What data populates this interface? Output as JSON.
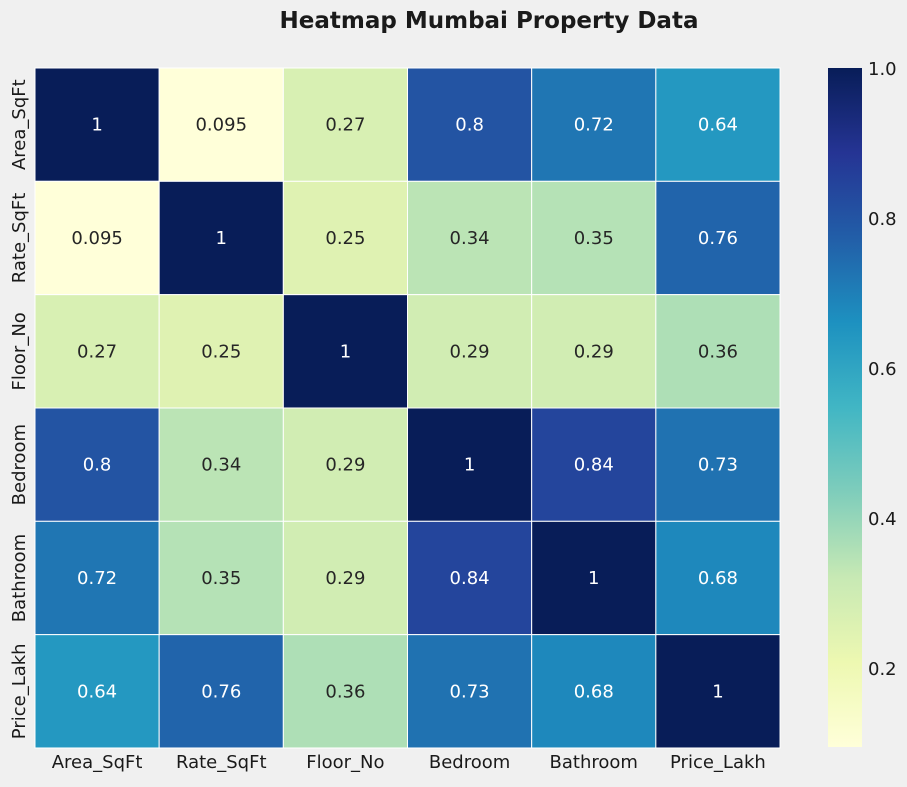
{
  "chart_data": {
    "type": "heatmap",
    "title": "Heatmap Mumbai Property Data",
    "xlabel": "",
    "ylabel": "",
    "columns": [
      "Area_SqFt",
      "Rate_SqFt",
      "Floor_No",
      "Bedroom",
      "Bathroom",
      "Price_Lakh"
    ],
    "rows": [
      "Area_SqFt",
      "Rate_SqFt",
      "Floor_No",
      "Bedroom",
      "Bathroom",
      "Price_Lakh"
    ],
    "values": [
      [
        1,
        0.095,
        0.27,
        0.8,
        0.72,
        0.64
      ],
      [
        0.095,
        1,
        0.25,
        0.34,
        0.35,
        0.76
      ],
      [
        0.27,
        0.25,
        1,
        0.29,
        0.29,
        0.36
      ],
      [
        0.8,
        0.34,
        0.29,
        1,
        0.84,
        0.73
      ],
      [
        0.72,
        0.35,
        0.29,
        0.84,
        1,
        0.68
      ],
      [
        0.64,
        0.76,
        0.36,
        0.73,
        0.68,
        1
      ]
    ],
    "labels": [
      [
        "1",
        "0.095",
        "0.27",
        "0.8",
        "0.72",
        "0.64"
      ],
      [
        "0.095",
        "1",
        "0.25",
        "0.34",
        "0.35",
        "0.76"
      ],
      [
        "0.27",
        "0.25",
        "1",
        "0.29",
        "0.29",
        "0.36"
      ],
      [
        "0.8",
        "0.34",
        "0.29",
        "1",
        "0.84",
        "0.73"
      ],
      [
        "0.72",
        "0.35",
        "0.29",
        "0.84",
        "1",
        "0.68"
      ],
      [
        "0.64",
        "0.76",
        "0.36",
        "0.73",
        "0.68",
        "1"
      ]
    ],
    "colormap": "YlGnBu",
    "colorbar": {
      "range": [
        0.095,
        1.0
      ],
      "ticks": [
        0.2,
        0.4,
        0.6,
        0.8,
        1.0
      ],
      "tick_labels": [
        "0.2",
        "0.4",
        "0.6",
        "0.8",
        "1.0"
      ]
    },
    "colors": {
      "background": "#f0f0f0",
      "cell_border": "#ffffff",
      "text_dark": "#262626",
      "text_light": "#ffffff"
    }
  }
}
